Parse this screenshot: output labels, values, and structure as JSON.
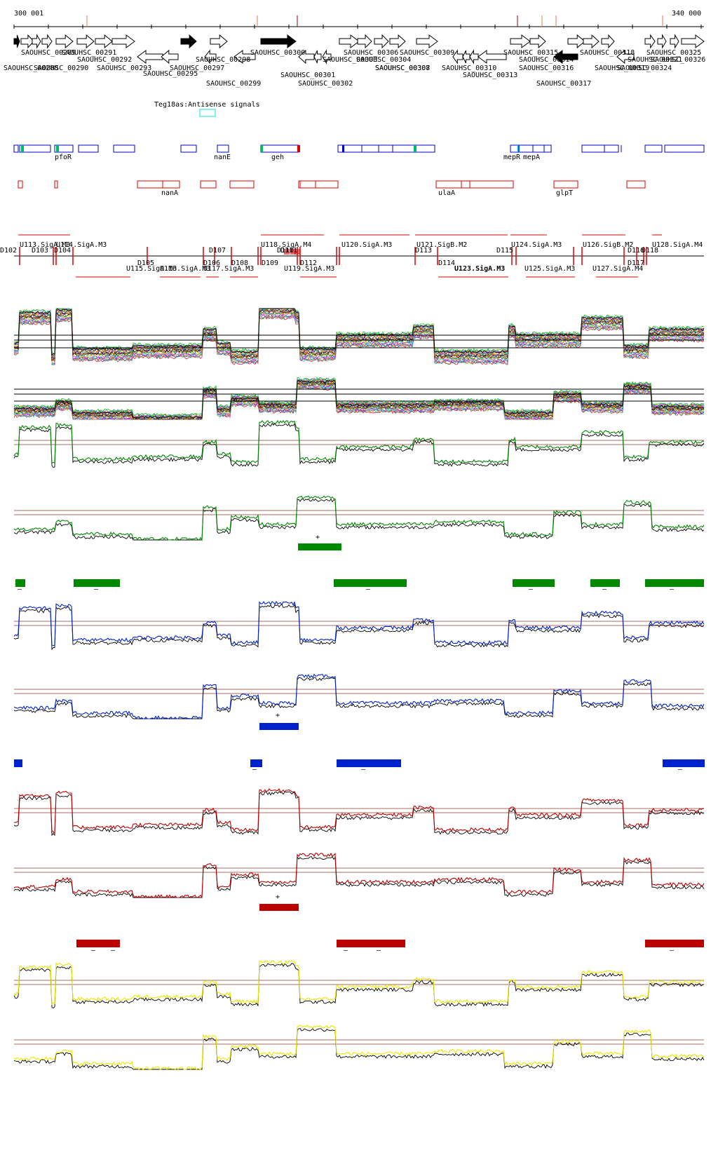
{
  "coords": {
    "start": "300 001",
    "end": "340 000"
  },
  "genes_top": [
    "SAOUHSC_00289",
    "SAOUHSC_00291",
    "SAOUHSC_00298",
    "SAOUHSC_00300",
    "SAOUHSC_00303",
    "SAOUHSC_00306",
    "SAOUHSC_00309",
    "SAOUHSC_00315",
    "SAOUHSC_00318",
    "SAOUHSC_00325"
  ],
  "genes_mid": [
    "SAOUHSC_00288",
    "SAOUHSC_00290",
    "SAOUHSC_00292",
    "SAOUHSC_00293",
    "SAOUHSC_00297",
    "SAOUHSC_00304",
    "SAOUHSC_00307",
    "SAOUHSC_00314",
    "SAOUHSC_00316",
    "SAOUHSC_00319",
    "SAOUHSC_00321",
    "SAOUHSC_00326",
    "SAOUHSC_00324"
  ],
  "genes_low": [
    "SAOUHSC_00295",
    "SAOUHSC_00299",
    "SAOUHSC_00301",
    "SAOUHSC_00302",
    "SAOUHSC_00308",
    "SAOUHSC_00310",
    "SAOUHSC_00313",
    "SAOUHSC_00317"
  ],
  "antisense": "Teg18as:Antisense signals",
  "blue_labels": [
    "pfoR",
    "nanE",
    "geh",
    "mepR",
    "mepA"
  ],
  "red_labels": [
    "nanA",
    "ulaA",
    "glpT"
  ],
  "upshifts": [
    "U113.SigA.M3",
    "U114.SigA.M3",
    "U118.SigA.M4",
    "U120.SigA.M3",
    "U121.SigB.M2",
    "U124.SigA.M3",
    "U126.SigB.M2",
    "U128.SigA.M4"
  ],
  "downshifts_a": [
    "D102",
    "D103",
    "D104",
    "D107",
    "D109",
    "D110",
    "D111",
    "D113",
    "D115",
    "D116",
    "D118"
  ],
  "downshifts_b": [
    "D105",
    "D106",
    "D108",
    "D112",
    "D114",
    "D117"
  ],
  "upshifts_b": [
    "U115.SigA.M3",
    "U116.SigA.M3",
    "U117.SigA.M3",
    "U119.SigA.M3",
    "U123.SigA.M3",
    "U125.SigA.M3",
    "U127.SigA.M4"
  ],
  "strand_marks": {
    "plus": "+",
    "minus": "–"
  },
  "colors": {
    "gene_black": "#000000",
    "feature_blue": "#0000cc",
    "feature_red": "#dd0000",
    "cyan": "#00e5e5",
    "green": "#008800",
    "blue": "#0022cc",
    "dark_red": "#bb0000",
    "yellow": "#e8e800",
    "brown": "#8b3a2a"
  }
}
